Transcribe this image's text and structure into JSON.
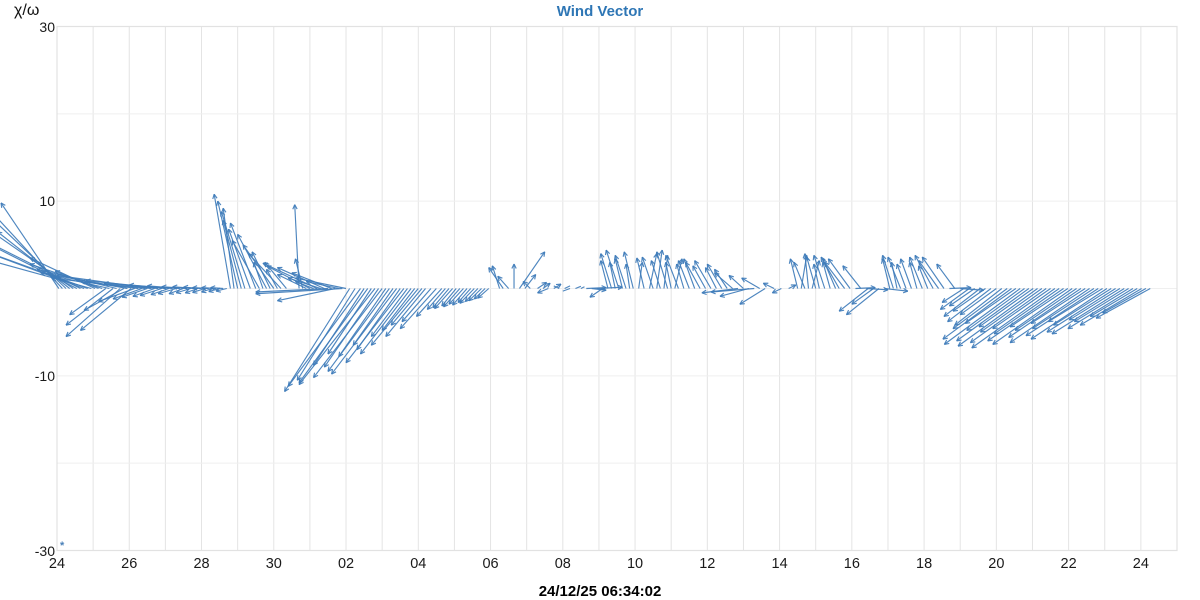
{
  "title": {
    "text": "Wind Vector",
    "color": "#2e76b5"
  },
  "y_axis": {
    "label": "χ/ω",
    "ticks": [
      "30",
      "10",
      "-10",
      "-30"
    ],
    "tick_values": [
      30,
      10,
      -10,
      -30
    ],
    "range": [
      -30,
      30
    ]
  },
  "x_axis": {
    "label": "24/12/25 06:34:02",
    "ticks": [
      "24",
      "26",
      "28",
      "30",
      "02",
      "04",
      "06",
      "08",
      "10",
      "12",
      "14",
      "16",
      "18",
      "20",
      "22",
      "24"
    ],
    "tick_step_days": 2,
    "range_days": [
      0,
      31
    ]
  },
  "corner_marker": {
    "glyph": "*",
    "color": "#4a80b8"
  },
  "style": {
    "vector_color": "#3f7cba",
    "grid_color_v": "#e4e4e4",
    "grid_color_h": "#efefef",
    "border_color": "#e2e2e2"
  },
  "chart_data": {
    "type": "vector",
    "title": "Wind Vector",
    "ylabel": "χ/ω",
    "xlabel": "24/12/25 06:34:02",
    "ylim": [
      -30,
      30
    ],
    "xlim_days": [
      0,
      31
    ],
    "grid": true,
    "note": "vectors = [x_day, dx_days, dy_units] rooted on y=0 baseline",
    "vectors": [
      [
        0.05,
        -1.6,
        9.8
      ],
      [
        0.15,
        -1.9,
        8.5
      ],
      [
        0.25,
        -2.3,
        9.0
      ],
      [
        0.35,
        -2.0,
        6.5
      ],
      [
        0.45,
        -2.6,
        7.5
      ],
      [
        0.55,
        -2.4,
        5.0
      ],
      [
        0.65,
        -2.9,
        6.0
      ],
      [
        0.75,
        -2.6,
        4.0
      ],
      [
        0.85,
        -3.0,
        4.5
      ],
      [
        0.95,
        -2.8,
        3.2
      ],
      [
        1.05,
        -1.8,
        3.5
      ],
      [
        1.15,
        -1.2,
        2.0
      ],
      [
        1.25,
        -2.0,
        2.8
      ],
      [
        1.35,
        -1.0,
        -3.0
      ],
      [
        1.45,
        -1.6,
        1.5
      ],
      [
        1.55,
        -1.3,
        -4.2
      ],
      [
        1.65,
        -2.2,
        2.2
      ],
      [
        1.75,
        -1.5,
        -5.5
      ],
      [
        1.85,
        -1.1,
        -2.5
      ],
      [
        1.95,
        -2.4,
        1.8
      ],
      [
        2.05,
        -1.4,
        -4.8
      ],
      [
        2.15,
        -1.0,
        -1.5
      ],
      [
        2.25,
        -2.4,
        1.2
      ],
      [
        2.35,
        -0.8,
        -1.2
      ],
      [
        2.45,
        -1.8,
        0.8
      ],
      [
        2.5,
        -0.7,
        -1.0
      ],
      [
        2.6,
        -2.6,
        1.5
      ],
      [
        2.7,
        -0.6,
        -0.9
      ],
      [
        2.8,
        -1.5,
        0.6
      ],
      [
        2.9,
        -0.6,
        -0.8
      ],
      [
        3.0,
        -2.2,
        0.9
      ],
      [
        3.1,
        -0.5,
        -0.7
      ],
      [
        3.2,
        -1.2,
        0.4
      ],
      [
        3.3,
        -0.5,
        -0.6
      ],
      [
        3.4,
        -0.9,
        0.3
      ],
      [
        3.5,
        -0.4,
        -0.6
      ],
      [
        3.6,
        -0.7,
        0.2
      ],
      [
        3.7,
        -0.4,
        -0.5
      ],
      [
        3.8,
        -0.6,
        0.2
      ],
      [
        3.9,
        -0.35,
        -0.5
      ],
      [
        4.0,
        -0.5,
        0.15
      ],
      [
        4.1,
        -0.35,
        -0.45
      ],
      [
        4.2,
        -0.45,
        0.1
      ],
      [
        4.3,
        -0.3,
        -0.4
      ],
      [
        4.4,
        -0.4,
        0.1
      ],
      [
        4.5,
        -0.3,
        -0.35
      ],
      [
        4.6,
        -0.35,
        0.1
      ],
      [
        4.7,
        -0.3,
        -0.3
      ],
      [
        4.8,
        -0.45,
        10.8
      ],
      [
        4.9,
        -0.3,
        9.2
      ],
      [
        5.0,
        -0.55,
        10.0
      ],
      [
        5.1,
        -0.5,
        7.8
      ],
      [
        5.2,
        -0.65,
        8.8
      ],
      [
        5.35,
        -0.6,
        6.8
      ],
      [
        5.5,
        -0.7,
        7.5
      ],
      [
        5.6,
        -0.75,
        5.5
      ],
      [
        5.7,
        -0.25,
        3.0
      ],
      [
        5.8,
        -0.8,
        6.2
      ],
      [
        5.9,
        -0.5,
        4.2
      ],
      [
        6.0,
        -0.85,
        5.0
      ],
      [
        6.1,
        -0.3,
        2.2
      ],
      [
        6.2,
        -0.9,
        4.0
      ],
      [
        6.35,
        -0.6,
        3.0
      ],
      [
        6.7,
        -0.12,
        9.6
      ],
      [
        6.8,
        -0.2,
        3.4
      ],
      [
        6.9,
        -0.8,
        1.6
      ],
      [
        7.0,
        -1.2,
        2.6
      ],
      [
        7.1,
        -0.5,
        0.8
      ],
      [
        7.2,
        -1.5,
        2.9
      ],
      [
        7.3,
        -0.9,
        1.2
      ],
      [
        7.4,
        -1.3,
        2.4
      ],
      [
        7.5,
        -2.0,
        -0.4
      ],
      [
        7.6,
        -1.1,
        1.8
      ],
      [
        7.7,
        -1.6,
        -1.4
      ],
      [
        7.8,
        -0.9,
        0.8
      ],
      [
        7.9,
        -2.4,
        -0.6
      ],
      [
        8.0,
        -1.4,
        1.2
      ],
      [
        8.1,
        -1.8,
        -11.8
      ],
      [
        8.25,
        -1.6,
        -10.5
      ],
      [
        8.4,
        -2.0,
        -11.2
      ],
      [
        8.5,
        -1.4,
        -8.8
      ],
      [
        8.6,
        -1.9,
        -10.8
      ],
      [
        8.7,
        -1.2,
        -7.5
      ],
      [
        8.8,
        -2.1,
        -11.0
      ],
      [
        8.9,
        -1.5,
        -9.0
      ],
      [
        9.0,
        -1.9,
        -10.2
      ],
      [
        9.1,
        -1.3,
        -7.8
      ],
      [
        9.2,
        -1.7,
        -9.5
      ],
      [
        9.3,
        -1.1,
        -6.5
      ],
      [
        9.4,
        -1.8,
        -9.8
      ],
      [
        9.5,
        -1.2,
        -7.0
      ],
      [
        9.6,
        -1.6,
        -8.5
      ],
      [
        9.7,
        -1.0,
        -5.5
      ],
      [
        9.8,
        -1.4,
        -7.5
      ],
      [
        9.9,
        -0.9,
        -4.8
      ],
      [
        10.0,
        -1.3,
        -6.5
      ],
      [
        10.1,
        -0.85,
        -4.2
      ],
      [
        10.2,
        -1.1,
        -5.5
      ],
      [
        10.35,
        -0.8,
        -3.8
      ],
      [
        10.5,
        -1.0,
        -4.6
      ],
      [
        10.65,
        -0.7,
        -3.2
      ],
      [
        10.75,
        -0.5,
        -2.4
      ],
      [
        10.85,
        -0.45,
        -2.2
      ],
      [
        10.95,
        -0.5,
        -2.3
      ],
      [
        11.05,
        -0.4,
        -2.0
      ],
      [
        11.15,
        -0.45,
        -2.1
      ],
      [
        11.25,
        -0.4,
        -1.8
      ],
      [
        11.35,
        -0.4,
        -1.9
      ],
      [
        11.45,
        -0.35,
        -1.6
      ],
      [
        11.55,
        -0.4,
        -1.7
      ],
      [
        11.65,
        -0.35,
        -1.5
      ],
      [
        11.75,
        -0.35,
        -1.4
      ],
      [
        11.85,
        -0.3,
        -1.2
      ],
      [
        11.95,
        -0.3,
        -1.1
      ],
      [
        12.25,
        -0.2,
        2.6
      ],
      [
        12.35,
        -0.4,
        2.4
      ],
      [
        12.5,
        -0.3,
        1.4
      ],
      [
        12.65,
        0.0,
        2.8
      ],
      [
        12.8,
        0.7,
        4.2
      ],
      [
        12.95,
        0.3,
        1.6
      ],
      [
        13.1,
        -0.2,
        0.8
      ],
      [
        13.3,
        0.25,
        0.7
      ],
      [
        13.45,
        0.2,
        0.6
      ],
      [
        13.6,
        -0.3,
        -0.5
      ],
      [
        13.75,
        0.2,
        0.5
      ],
      [
        13.9,
        -0.15,
        0.3
      ],
      [
        14.05,
        0.15,
        0.3
      ],
      [
        14.2,
        -0.2,
        -0.3
      ],
      [
        14.35,
        0.15,
        0.25
      ],
      [
        14.5,
        0.1,
        0.2
      ],
      [
        14.65,
        0.55,
        0.1
      ],
      [
        14.8,
        0.4,
        -0.2
      ],
      [
        14.95,
        0.7,
        0.15
      ],
      [
        15.1,
        -0.35,
        -1.0
      ],
      [
        15.25,
        -0.2,
        3.2
      ],
      [
        15.35,
        -0.3,
        4.0
      ],
      [
        15.45,
        -0.15,
        3.0
      ],
      [
        15.55,
        -0.35,
        4.4
      ],
      [
        15.65,
        -0.2,
        3.4
      ],
      [
        15.75,
        -0.3,
        3.8
      ],
      [
        15.85,
        -0.1,
        2.8
      ],
      [
        15.95,
        -0.25,
        4.2
      ],
      [
        16.1,
        0.1,
        3.0
      ],
      [
        16.25,
        -0.2,
        3.5
      ],
      [
        16.4,
        0.2,
        4.0
      ],
      [
        16.5,
        -0.3,
        3.6
      ],
      [
        16.6,
        0.15,
        4.4
      ],
      [
        16.7,
        -0.25,
        3.2
      ],
      [
        16.8,
        0.1,
        3.8
      ],
      [
        16.9,
        -0.3,
        4.2
      ],
      [
        17.0,
        -0.15,
        3.0
      ],
      [
        17.1,
        0.2,
        3.4
      ],
      [
        17.2,
        -0.35,
        3.8
      ],
      [
        17.35,
        -0.2,
        2.8
      ],
      [
        17.5,
        -0.3,
        3.2
      ],
      [
        17.65,
        -0.3,
        3.4
      ],
      [
        17.8,
        -0.4,
        3.0
      ],
      [
        17.95,
        -0.35,
        2.6
      ],
      [
        18.1,
        -0.45,
        3.2
      ],
      [
        18.25,
        -0.3,
        2.4
      ],
      [
        18.4,
        -0.4,
        2.8
      ],
      [
        18.55,
        -0.35,
        2.2
      ],
      [
        18.7,
        -0.5,
        1.8
      ],
      [
        18.85,
        -1.0,
        -0.5
      ],
      [
        19.0,
        -0.4,
        1.5
      ],
      [
        19.15,
        -0.8,
        -0.9
      ],
      [
        19.3,
        -1.2,
        -0.4
      ],
      [
        19.45,
        -0.5,
        1.2
      ],
      [
        19.6,
        -0.7,
        -1.8
      ],
      [
        19.85,
        -0.3,
        0.6
      ],
      [
        20.05,
        -0.25,
        -0.5
      ],
      [
        20.25,
        0.2,
        0.4
      ],
      [
        20.5,
        -0.2,
        3.4
      ],
      [
        20.6,
        0.15,
        3.8
      ],
      [
        20.7,
        -0.3,
        3.0
      ],
      [
        20.8,
        -0.1,
        4.0
      ],
      [
        20.9,
        0.2,
        3.2
      ],
      [
        21.0,
        -0.25,
        3.6
      ],
      [
        21.1,
        -0.15,
        2.8
      ],
      [
        21.25,
        -0.3,
        3.8
      ],
      [
        21.4,
        -0.2,
        3.0
      ],
      [
        21.55,
        -0.35,
        3.4
      ],
      [
        21.65,
        -0.5,
        3.6
      ],
      [
        21.8,
        -0.55,
        3.0
      ],
      [
        21.95,
        -0.6,
        3.4
      ],
      [
        22.1,
        0.55,
        0.1
      ],
      [
        22.25,
        -0.5,
        2.6
      ],
      [
        22.4,
        0.6,
        -0.15
      ],
      [
        22.45,
        -0.8,
        -2.6
      ],
      [
        22.6,
        -0.6,
        -1.8
      ],
      [
        22.75,
        -0.9,
        -3.0
      ],
      [
        22.9,
        0.65,
        -0.3
      ],
      [
        23.05,
        -0.2,
        3.4
      ],
      [
        23.15,
        -0.3,
        3.8
      ],
      [
        23.25,
        -0.15,
        3.0
      ],
      [
        23.35,
        -0.35,
        3.6
      ],
      [
        23.5,
        -0.25,
        2.8
      ],
      [
        23.65,
        -0.3,
        3.4
      ],
      [
        23.8,
        -0.2,
        3.0
      ],
      [
        23.95,
        -0.35,
        3.6
      ],
      [
        24.1,
        -0.25,
        2.6
      ],
      [
        24.25,
        -0.5,
        3.8
      ],
      [
        24.4,
        -0.55,
        3.2
      ],
      [
        24.55,
        -0.6,
        3.6
      ],
      [
        24.7,
        0.6,
        0.1
      ],
      [
        24.85,
        -0.5,
        2.8
      ],
      [
        25.0,
        0.65,
        -0.2
      ],
      [
        25.1,
        -0.6,
        -1.6
      ],
      [
        25.25,
        -0.8,
        -2.4
      ],
      [
        25.4,
        -0.7,
        -2.0
      ],
      [
        25.55,
        -1.0,
        -3.2
      ],
      [
        25.7,
        -0.9,
        -2.6
      ],
      [
        25.85,
        -1.2,
        -3.8
      ],
      [
        26.0,
        -1.0,
        -3.0
      ],
      [
        26.15,
        -1.3,
        -4.2
      ],
      [
        26.3,
        -1.5,
        -4.6
      ],
      [
        26.42,
        -1.9,
        -5.8
      ],
      [
        26.54,
        -1.4,
        -4.0
      ],
      [
        26.66,
        -2.1,
        -6.4
      ],
      [
        26.78,
        -1.6,
        -4.8
      ],
      [
        26.9,
        -2.0,
        -6.0
      ],
      [
        27.02,
        -1.5,
        -4.4
      ],
      [
        27.14,
        -2.2,
        -6.6
      ],
      [
        27.26,
        -1.7,
        -5.0
      ],
      [
        27.38,
        -2.1,
        -6.2
      ],
      [
        27.5,
        -1.6,
        -4.6
      ],
      [
        27.62,
        -2.3,
        -6.8
      ],
      [
        27.74,
        -1.8,
        -5.2
      ],
      [
        27.86,
        -2.1,
        -6.0
      ],
      [
        27.98,
        -1.6,
        -4.4
      ],
      [
        28.1,
        -2.2,
        -6.4
      ],
      [
        28.22,
        -1.7,
        -4.8
      ],
      [
        28.34,
        -2.0,
        -5.6
      ],
      [
        28.46,
        -1.5,
        -4.0
      ],
      [
        28.58,
        -2.2,
        -6.2
      ],
      [
        28.7,
        -1.7,
        -4.6
      ],
      [
        28.82,
        -2.0,
        -5.4
      ],
      [
        28.94,
        -1.5,
        -3.8
      ],
      [
        29.06,
        -2.1,
        -5.8
      ],
      [
        29.18,
        -1.6,
        -4.2
      ],
      [
        29.3,
        -1.9,
        -5.0
      ],
      [
        29.42,
        -1.4,
        -3.6
      ],
      [
        29.54,
        -2.0,
        -5.2
      ],
      [
        29.66,
        -1.5,
        -3.8
      ],
      [
        29.78,
        -1.8,
        -4.6
      ],
      [
        29.9,
        -1.3,
        -3.2
      ],
      [
        30.02,
        -1.7,
        -4.2
      ],
      [
        30.14,
        -1.2,
        -2.8
      ],
      [
        30.26,
        -1.5,
        -3.4
      ]
    ]
  }
}
